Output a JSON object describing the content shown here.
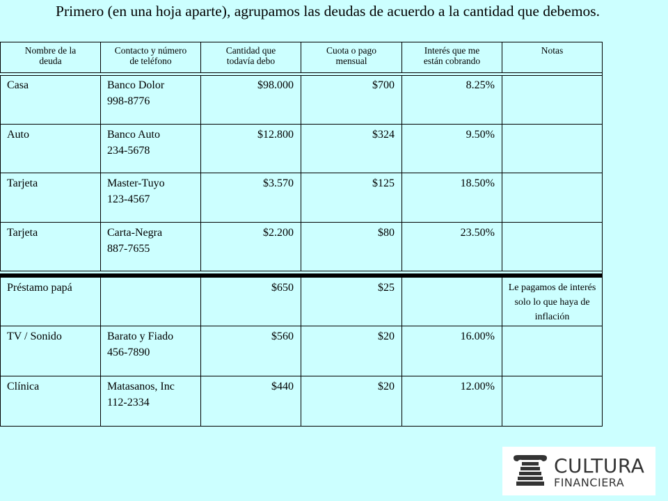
{
  "title": "Primero (en una hoja aparte), agrupamos las deudas de acuerdo a la cantidad que debemos.",
  "table": {
    "headers": [
      [
        "Nombre de la",
        "deuda"
      ],
      [
        "Contacto y número",
        "de teléfono"
      ],
      [
        "Cantidad que",
        "todavía debo"
      ],
      [
        "Cuota o pago",
        "mensual"
      ],
      [
        "Interés que me",
        "están cobrando"
      ],
      [
        "Notas",
        ""
      ]
    ],
    "rows": [
      {
        "name": "Casa",
        "contact1": "Banco Dolor",
        "contact2": "998-8776",
        "amount": "$98.000",
        "payment": "$700",
        "rate": "8.25%",
        "notes": ""
      },
      {
        "name": "Auto",
        "contact1": "Banco Auto",
        "contact2": "234-5678",
        "amount": "$12.800",
        "payment": "$324",
        "rate": "9.50%",
        "notes": ""
      },
      {
        "name": "Tarjeta",
        "contact1": "Master-Tuyo",
        "contact2": "123-4567",
        "amount": "$3.570",
        "payment": "$125",
        "rate": "18.50%",
        "notes": ""
      },
      {
        "name": "Tarjeta",
        "contact1": "Carta-Negra",
        "contact2": "887-7655",
        "amount": "$2.200",
        "payment": "$80",
        "rate": "23.50%",
        "notes": ""
      },
      {
        "name": "Préstamo papá",
        "contact1": "",
        "contact2": "",
        "amount": "$650",
        "payment": "$25",
        "rate": "",
        "notes": "Le pagamos de interés solo lo que haya de inflación"
      },
      {
        "name": "TV / Sonido",
        "contact1": "Barato y Fiado",
        "contact2": "456-7890",
        "amount": "$560",
        "payment": "$20",
        "rate": "16.00%",
        "notes": ""
      },
      {
        "name": "Clínica",
        "contact1": "Matasanos, Inc",
        "contact2": "112-2334",
        "amount": "$440",
        "payment": "$20",
        "rate": "12.00%",
        "notes": ""
      }
    ]
  },
  "logo": {
    "line1": "CULTURA",
    "line2": "FINANCIERA",
    "icon": "column-pillar-icon",
    "color": "#333333"
  }
}
